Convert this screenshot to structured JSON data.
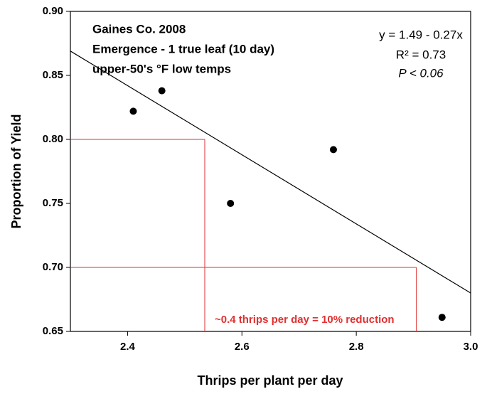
{
  "chart_data": {
    "type": "scatter",
    "x_label": "Thrips per plant per day",
    "y_label": "Proportion of Yield",
    "annotations": [
      "Gaines Co. 2008",
      "Emergence - 1 true leaf (10 day)",
      "upper-50's °F low temps"
    ],
    "equation": [
      "y = 1.49 - 0.27x",
      "R² = 0.73",
      "P < 0.06"
    ],
    "reference_note": "~0.4 thrips per day = 10% reduction",
    "x": [
      2.41,
      2.46,
      2.58,
      2.76,
      2.95
    ],
    "values": [
      0.822,
      0.838,
      0.75,
      0.792,
      0.661
    ],
    "color": "#000000",
    "trend": {
      "intercept": 1.49,
      "slope": -0.27,
      "color": "#000000"
    },
    "reference_lines": [
      {
        "x": 2.535,
        "y": 0.8
      },
      {
        "x": 2.905,
        "y": 0.7
      }
    ],
    "reference_color": "#e03030",
    "xlim": [
      2.3,
      3.0
    ],
    "ylim": [
      0.65,
      0.9
    ],
    "xticks": [
      2.4,
      2.6,
      2.8,
      {
        "value": 3.0,
        "label": "3.0"
      }
    ],
    "yticks": [
      0.65,
      {
        "value": 0.7,
        "label": "0.70"
      },
      0.75,
      {
        "value": 0.8,
        "label": "0.80"
      },
      0.85,
      {
        "value": 0.9,
        "label": "0.90"
      }
    ]
  }
}
